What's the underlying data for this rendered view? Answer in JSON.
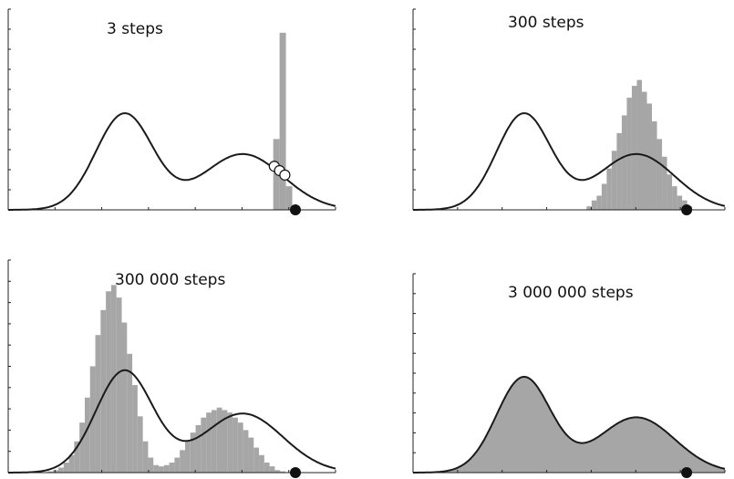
{
  "chart_data": [
    {
      "type": "bar",
      "title": "3 steps",
      "steps": 3,
      "histogram": {
        "x": [
          -0.06,
          0.0,
          0.06
        ],
        "density": [
          0.6,
          1.5,
          0.2
        ],
        "color": "#a6a6a6"
      },
      "target_curve": {
        "components": [
          {
            "weight": 0.55,
            "mean": -1.5,
            "sd": 0.27
          },
          {
            "weight": 0.45,
            "mean": -0.38,
            "sd": 0.38
          }
        ],
        "color": "#1a1a1a"
      },
      "chain_start": {
        "x": 0.12,
        "marker": "filled-circle"
      },
      "chain_steps": [
        {
          "x": -0.08
        },
        {
          "x": -0.03
        },
        {
          "x": 0.02
        }
      ],
      "xlim": [
        -2.6,
        0.5
      ]
    },
    {
      "type": "bar",
      "title": "300 steps",
      "steps": 300,
      "histogram": {
        "x": [
          -0.85,
          -0.8,
          -0.75,
          -0.7,
          -0.65,
          -0.6,
          -0.55,
          -0.5,
          -0.45,
          -0.4,
          -0.35,
          -0.3,
          -0.25,
          -0.2,
          -0.15,
          -0.1,
          -0.05,
          0.0,
          0.05,
          0.1,
          0.15
        ],
        "density": [
          0.03,
          0.08,
          0.12,
          0.22,
          0.35,
          0.5,
          0.65,
          0.8,
          0.95,
          1.05,
          1.1,
          1.0,
          0.9,
          0.75,
          0.6,
          0.45,
          0.3,
          0.2,
          0.12,
          0.08,
          0.03
        ],
        "color": "#a6a6a6"
      },
      "target_curve": {
        "components": [
          {
            "weight": 0.55,
            "mean": -1.5,
            "sd": 0.27
          },
          {
            "weight": 0.45,
            "mean": -0.38,
            "sd": 0.38
          }
        ],
        "color": "#1a1a1a"
      },
      "chain_start": {
        "x": 0.12,
        "marker": "filled-circle"
      },
      "xlim": [
        -2.6,
        0.5
      ]
    },
    {
      "type": "bar",
      "title": "300 000 steps",
      "steps": 300000,
      "histogram": {
        "x": [
          -2.2,
          -2.15,
          -2.1,
          -2.05,
          -2.0,
          -1.95,
          -1.9,
          -1.85,
          -1.8,
          -1.75,
          -1.7,
          -1.65,
          -1.6,
          -1.55,
          -1.5,
          -1.45,
          -1.4,
          -1.35,
          -1.3,
          -1.25,
          -1.2,
          -1.15,
          -1.1,
          -1.05,
          -1.0,
          -0.95,
          -0.9,
          -0.85,
          -0.8,
          -0.75,
          -0.7,
          -0.65,
          -0.6,
          -0.55,
          -0.5,
          -0.45,
          -0.4,
          -0.35,
          -0.3,
          -0.25,
          -0.2,
          -0.15,
          -0.1,
          -0.05,
          0.0
        ],
        "density": [
          0.01,
          0.02,
          0.04,
          0.08,
          0.14,
          0.25,
          0.4,
          0.6,
          0.85,
          1.1,
          1.3,
          1.45,
          1.5,
          1.4,
          1.2,
          0.95,
          0.7,
          0.45,
          0.25,
          0.12,
          0.06,
          0.05,
          0.06,
          0.08,
          0.12,
          0.18,
          0.25,
          0.32,
          0.38,
          0.44,
          0.48,
          0.5,
          0.52,
          0.5,
          0.48,
          0.44,
          0.4,
          0.34,
          0.28,
          0.2,
          0.14,
          0.08,
          0.05,
          0.02,
          0.01
        ],
        "color": "#a6a6a6"
      },
      "target_curve": {
        "components": [
          {
            "weight": 0.55,
            "mean": -1.5,
            "sd": 0.27
          },
          {
            "weight": 0.45,
            "mean": -0.38,
            "sd": 0.38
          }
        ],
        "color": "#1a1a1a"
      },
      "chain_start": {
        "x": 0.12,
        "marker": "filled-circle"
      },
      "xlim": [
        -2.6,
        0.5
      ]
    },
    {
      "type": "area",
      "title": "3 000 000 steps",
      "steps": 3000000,
      "histogram": {
        "matches_target": true,
        "color": "#a6a6a6"
      },
      "target_curve": {
        "components": [
          {
            "weight": 0.55,
            "mean": -1.5,
            "sd": 0.27
          },
          {
            "weight": 0.45,
            "mean": -0.38,
            "sd": 0.38
          }
        ],
        "color": "#1a1a1a"
      },
      "chain_start": {
        "x": 0.12,
        "marker": "filled-circle"
      },
      "xlim": [
        -2.6,
        0.5
      ]
    }
  ]
}
